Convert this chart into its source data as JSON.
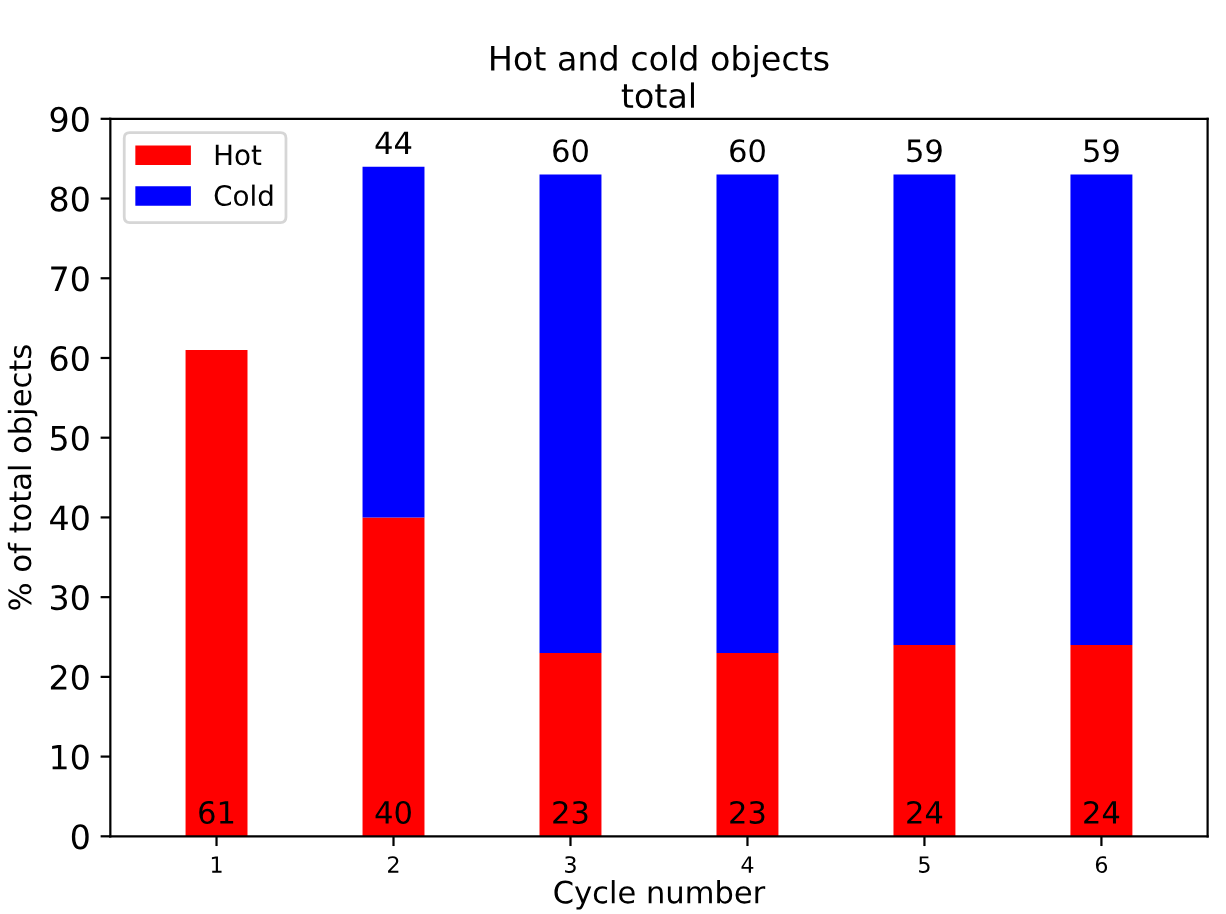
{
  "chart_data": {
    "type": "bar",
    "title": "Hot and cold objects\ntotal",
    "xlabel": "Cycle number",
    "ylabel": "% of total objects",
    "categories": [
      "1",
      "2",
      "3",
      "4",
      "5",
      "6"
    ],
    "stacked": true,
    "series": [
      {
        "name": "Hot",
        "color": "#ff0000",
        "values": [
          61,
          40,
          23,
          23,
          24,
          24
        ]
      },
      {
        "name": "Cold",
        "color": "#0000ff",
        "values": [
          null,
          44,
          60,
          60,
          59,
          59
        ]
      }
    ],
    "ylim": [
      0,
      90
    ],
    "yticks": [
      0,
      10,
      20,
      30,
      40,
      50,
      60,
      70,
      80,
      90
    ],
    "grid": false,
    "legend": "top left",
    "data_labels": true
  }
}
